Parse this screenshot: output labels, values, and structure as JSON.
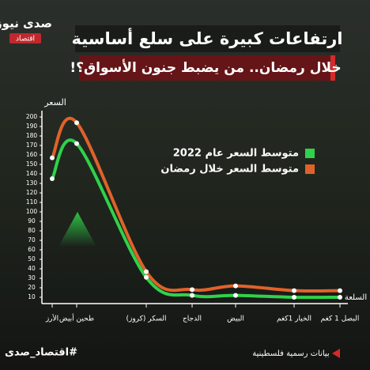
{
  "chart_data": {
    "type": "line",
    "brand": "صدى نيوز",
    "section": "اقتصاد",
    "title": "ارتفاعات كبيرة على سلع أساسية",
    "subtitle": "خلال رمضان.. من يضبط جنون الأسواق؟!",
    "y_label": "السعر",
    "x_label": "السلعة",
    "categories": [
      "الأرز",
      "طحين أبيض",
      "السكر (كروز)",
      "الدجاج",
      "البيض",
      "الخيار 1كغم",
      "البصل 1 كغم"
    ],
    "series": [
      {
        "name": "متوسط السعر عام 2022",
        "color": "#2fd24a",
        "values": [
          135,
          172,
          31,
          12,
          12,
          10,
          10
        ]
      },
      {
        "name": "متوسط السعر خلال رمضان",
        "color": "#e0622a",
        "values": [
          157,
          194,
          37,
          18,
          22,
          17,
          17
        ]
      }
    ],
    "ylim": [
      0,
      200
    ],
    "yticks": [
      10,
      20,
      30,
      40,
      50,
      60,
      70,
      80,
      90,
      100,
      110,
      120,
      130,
      140,
      150,
      160,
      170,
      180,
      190,
      200
    ],
    "hashtag": "#اقتصاد_صدى",
    "source": "بيانات رسمية فلسطينية"
  }
}
